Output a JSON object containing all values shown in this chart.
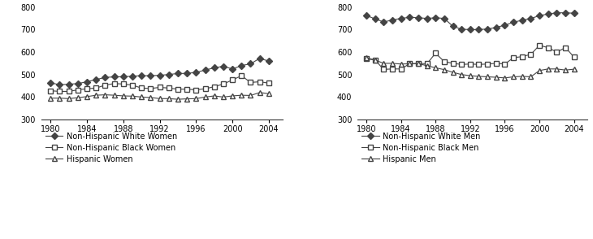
{
  "years": [
    1980,
    1981,
    1982,
    1983,
    1984,
    1985,
    1986,
    1987,
    1988,
    1989,
    1990,
    1991,
    1992,
    1993,
    1994,
    1995,
    1996,
    1997,
    1998,
    1999,
    2000,
    2001,
    2002,
    2003,
    2004
  ],
  "white_women": [
    463,
    455,
    457,
    460,
    468,
    478,
    487,
    490,
    490,
    493,
    495,
    495,
    497,
    500,
    505,
    505,
    510,
    520,
    530,
    537,
    525,
    540,
    548,
    572,
    560
  ],
  "black_women": [
    428,
    425,
    425,
    432,
    437,
    440,
    453,
    460,
    458,
    453,
    440,
    438,
    443,
    440,
    435,
    435,
    432,
    437,
    446,
    458,
    476,
    495,
    465,
    468,
    462
  ],
  "hisp_women": [
    395,
    395,
    393,
    397,
    402,
    408,
    410,
    408,
    405,
    404,
    400,
    398,
    393,
    393,
    390,
    392,
    393,
    400,
    405,
    400,
    405,
    408,
    407,
    420,
    415
  ],
  "white_men": [
    763,
    748,
    734,
    743,
    750,
    755,
    753,
    750,
    753,
    750,
    715,
    702,
    700,
    700,
    703,
    710,
    720,
    733,
    742,
    750,
    762,
    770,
    775,
    775,
    773
  ],
  "black_men": [
    570,
    565,
    523,
    525,
    525,
    548,
    550,
    548,
    595,
    558,
    550,
    545,
    547,
    545,
    547,
    550,
    547,
    575,
    580,
    590,
    630,
    620,
    600,
    620,
    578
  ],
  "hisp_men": [
    575,
    565,
    550,
    550,
    547,
    548,
    548,
    540,
    530,
    522,
    510,
    500,
    495,
    492,
    490,
    488,
    485,
    490,
    492,
    490,
    518,
    525,
    525,
    520,
    524
  ],
  "ylim": [
    300,
    800
  ],
  "yticks": [
    300,
    400,
    500,
    600,
    700,
    800
  ],
  "xticks": [
    1980,
    1984,
    1988,
    1992,
    1996,
    2000,
    2004
  ],
  "legend_women": [
    "Non-Hispanic White Women",
    "Non-Hispanic Black Women",
    "Hispanic Women"
  ],
  "legend_men": [
    "Non-Hispanic White Men",
    "Non-Hispanic Black Men",
    "Hispanic Men"
  ],
  "line_color": "#444444",
  "marker_size": 4
}
